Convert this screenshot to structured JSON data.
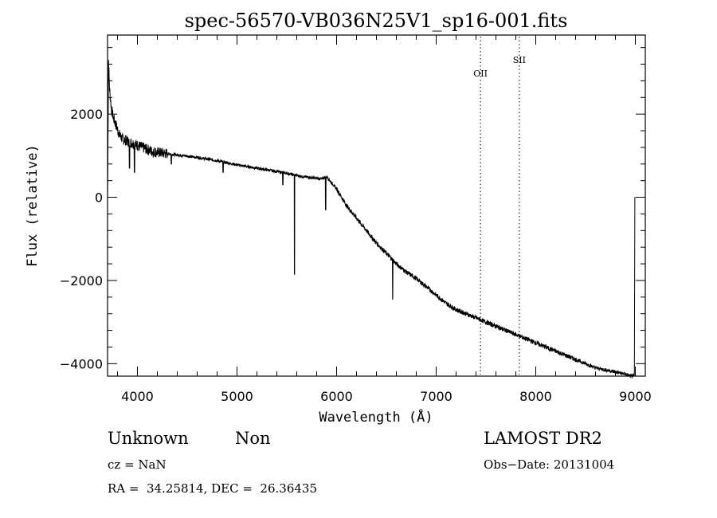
{
  "chart_data": {
    "type": "line",
    "title": "spec-56570-VB036N25V1_sp16-001.fits",
    "xlabel": "Wavelength (Å)",
    "ylabel": "Flux (relative)",
    "xlim": [
      3700,
      9100
    ],
    "ylim": [
      -4300,
      3900
    ],
    "xticks": [
      4000,
      5000,
      6000,
      7000,
      8000,
      9000
    ],
    "xtick_labels": [
      "4000",
      "5000",
      "6000",
      "7000",
      "8000",
      "9000"
    ],
    "yticks": [
      2000,
      0,
      -2000,
      -4000
    ],
    "ytick_labels": [
      "2000",
      "0",
      "−2000",
      "−4000"
    ],
    "grid": false,
    "line_color": "#000000",
    "series": [
      {
        "x": [
          3700,
          3710,
          3720,
          3740,
          3760,
          3790,
          3820,
          3850,
          3900,
          3950,
          4000,
          4050,
          4100,
          4150,
          4200,
          4300,
          4400,
          4500,
          4600,
          4700,
          4800,
          4900,
          5000,
          5100,
          5200,
          5300,
          5400,
          5500,
          5570,
          5650,
          5750,
          5850,
          5900,
          5950,
          6000,
          6100,
          6200,
          6300,
          6400,
          6500,
          6600,
          6700,
          6800,
          6900,
          7000,
          7100,
          7200,
          7300,
          7400,
          7500,
          7600,
          7700,
          7800,
          7900,
          8000,
          8100,
          8200,
          8300,
          8400,
          8500,
          8600,
          8700,
          8800,
          8900,
          8950,
          8990
        ],
        "y": [
          0,
          3300,
          2600,
          2100,
          1900,
          1700,
          1500,
          1400,
          1350,
          1300,
          1250,
          1200,
          1150,
          1100,
          1080,
          1050,
          1020,
          990,
          960,
          920,
          880,
          830,
          780,
          740,
          700,
          660,
          620,
          580,
          540,
          500,
          470,
          440,
          500,
          350,
          200,
          -200,
          -500,
          -800,
          -1100,
          -1350,
          -1600,
          -1800,
          -1950,
          -2150,
          -2350,
          -2550,
          -2700,
          -2800,
          -2900,
          -3000,
          -3100,
          -3200,
          -3300,
          -3400,
          -3500,
          -3600,
          -3700,
          -3800,
          -3900,
          -4000,
          -4100,
          -4150,
          -4200,
          -4250,
          -4300,
          -4300
        ]
      }
    ],
    "absorption_dips": [
      {
        "x": 3920,
        "y": 700
      },
      {
        "x": 3970,
        "y": 600
      },
      {
        "x": 4340,
        "y": 800
      },
      {
        "x": 4860,
        "y": 600
      },
      {
        "x": 5460,
        "y": 300
      },
      {
        "x": 5577,
        "y": -1850
      },
      {
        "x": 5890,
        "y": -300
      },
      {
        "x": 6563,
        "y": -2450
      }
    ],
    "line_markers": [
      {
        "label": "OII",
        "x": 7445
      },
      {
        "label": "SII",
        "x": 7835
      }
    ]
  },
  "info": {
    "class": "Unknown",
    "subclass": "Non",
    "survey": "LAMOST DR2",
    "cz": "cz = NaN",
    "obs_date": "Obs−Date: 20131004",
    "radec": "RA =  34.25814, DEC =  26.36435"
  }
}
